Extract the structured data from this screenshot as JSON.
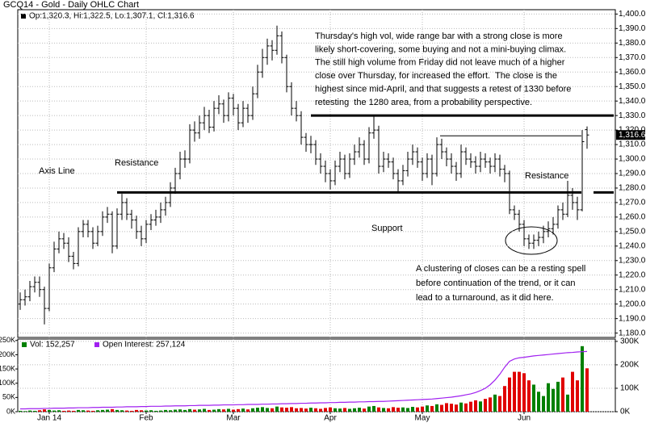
{
  "chart_data": {
    "type": "ohlc",
    "title": "GCQ14 - Gold - Daily OHLC Chart",
    "legend_text": "Op:1,320.3, Hi:1,322.5, Lo:1,307.1, Cl:1,316.6",
    "color": "#000000",
    "grid": true,
    "categories": [
      null,
      null,
      null,
      null,
      null,
      null,
      "Jan 14",
      null,
      null,
      null,
      null,
      null,
      null,
      null,
      null,
      null,
      null,
      null,
      null,
      null,
      null,
      null,
      null,
      null,
      null,
      null,
      "Feb",
      null,
      null,
      null,
      null,
      null,
      null,
      null,
      null,
      null,
      null,
      null,
      null,
      null,
      null,
      null,
      null,
      null,
      "Mar",
      null,
      null,
      null,
      null,
      null,
      null,
      null,
      null,
      null,
      null,
      null,
      null,
      null,
      null,
      null,
      null,
      null,
      null,
      null,
      "Apr",
      null,
      null,
      null,
      null,
      null,
      null,
      null,
      null,
      null,
      null,
      null,
      null,
      null,
      null,
      null,
      null,
      null,
      null,
      "May",
      null,
      null,
      null,
      null,
      null,
      null,
      null,
      null,
      null,
      null,
      null,
      null,
      null,
      null,
      null,
      null,
      null,
      null,
      null,
      null,
      "Jun",
      null,
      null,
      null,
      null,
      null,
      null,
      null,
      null,
      null,
      null,
      null,
      null,
      null
    ],
    "open": [
      1200,
      1203,
      1205,
      1212,
      1215,
      1210,
      1197,
      1225,
      1238,
      1245,
      1242,
      1233,
      1228,
      1250,
      1255,
      1250,
      1242,
      1250,
      1260,
      1262,
      1240,
      1262,
      1270,
      1262,
      1258,
      1250,
      1245,
      1255,
      1258,
      1260,
      1265,
      1270,
      1280,
      1290,
      1300,
      1300,
      1320,
      1318,
      1325,
      1330,
      1322,
      1335,
      1338,
      1330,
      1342,
      1335,
      1325,
      1335,
      1330,
      1345,
      1360,
      1370,
      1378,
      1375,
      1385,
      1370,
      1350,
      1335,
      1330,
      1315,
      1310,
      1310,
      1300,
      1295,
      1290,
      1285,
      1295,
      1300,
      1290,
      1300,
      1305,
      1310,
      1300,
      1318,
      1320,
      1295,
      1300,
      1298,
      1290,
      1285,
      1292,
      1300,
      1305,
      1298,
      1290,
      1300,
      1290,
      1310,
      1305,
      1300,
      1295,
      1290,
      1305,
      1300,
      1298,
      1295,
      1300,
      1298,
      1295,
      1300,
      1293,
      1290,
      1265,
      1262,
      1255,
      1245,
      1242,
      1244,
      1246,
      1250,
      1252,
      1255,
      1265,
      1262,
      1275,
      1270,
      1265,
      1320.3
    ],
    "high": [
      1208,
      1210,
      1216,
      1219,
      1219,
      1212,
      1228,
      1243,
      1250,
      1249,
      1246,
      1236,
      1253,
      1258,
      1258,
      1253,
      1254,
      1264,
      1267,
      1264,
      1266,
      1276,
      1273,
      1265,
      1261,
      1254,
      1258,
      1262,
      1265,
      1270,
      1274,
      1284,
      1294,
      1305,
      1306,
      1324,
      1326,
      1330,
      1336,
      1334,
      1340,
      1344,
      1341,
      1346,
      1345,
      1338,
      1340,
      1338,
      1350,
      1365,
      1376,
      1383,
      1382,
      1392,
      1388,
      1372,
      1353,
      1340,
      1333,
      1318,
      1316,
      1313,
      1304,
      1299,
      1293,
      1299,
      1305,
      1303,
      1304,
      1310,
      1315,
      1313,
      1322,
      1330,
      1323,
      1305,
      1304,
      1301,
      1293,
      1296,
      1305,
      1310,
      1308,
      1301,
      1304,
      1303,
      1315,
      1314,
      1308,
      1304,
      1298,
      1310,
      1308,
      1304,
      1302,
      1305,
      1304,
      1301,
      1304,
      1303,
      1296,
      1292,
      1268,
      1265,
      1258,
      1248,
      1248,
      1250,
      1254,
      1257,
      1260,
      1268,
      1270,
      1285,
      1280,
      1274,
      1320,
      1322.5
    ],
    "low": [
      1196,
      1199,
      1202,
      1208,
      1205,
      1186,
      1195,
      1222,
      1235,
      1238,
      1229,
      1224,
      1226,
      1246,
      1246,
      1238,
      1240,
      1247,
      1256,
      1235,
      1238,
      1258,
      1258,
      1252,
      1245,
      1240,
      1242,
      1251,
      1254,
      1256,
      1261,
      1267,
      1276,
      1286,
      1294,
      1297,
      1312,
      1314,
      1320,
      1318,
      1319,
      1331,
      1325,
      1326,
      1330,
      1320,
      1322,
      1325,
      1327,
      1342,
      1356,
      1365,
      1368,
      1372,
      1366,
      1346,
      1330,
      1326,
      1310,
      1305,
      1304,
      1296,
      1290,
      1284,
      1279,
      1282,
      1291,
      1286,
      1287,
      1296,
      1301,
      1296,
      1297,
      1314,
      1290,
      1291,
      1294,
      1286,
      1277,
      1282,
      1288,
      1296,
      1294,
      1285,
      1287,
      1282,
      1288,
      1300,
      1295,
      1290,
      1285,
      1287,
      1296,
      1294,
      1290,
      1291,
      1294,
      1290,
      1291,
      1288,
      1284,
      1262,
      1258,
      1250,
      1240,
      1238,
      1238,
      1240,
      1242,
      1246,
      1248,
      1252,
      1258,
      1260,
      1265,
      1258,
      1264,
      1307.1
    ],
    "close": [
      1203,
      1205,
      1212,
      1215,
      1210,
      1197,
      1225,
      1238,
      1245,
      1242,
      1233,
      1228,
      1250,
      1255,
      1250,
      1242,
      1250,
      1260,
      1262,
      1240,
      1262,
      1270,
      1262,
      1258,
      1250,
      1245,
      1255,
      1258,
      1260,
      1265,
      1270,
      1280,
      1290,
      1300,
      1300,
      1320,
      1318,
      1325,
      1330,
      1322,
      1335,
      1338,
      1330,
      1342,
      1335,
      1325,
      1335,
      1330,
      1345,
      1360,
      1370,
      1378,
      1375,
      1385,
      1370,
      1350,
      1335,
      1330,
      1315,
      1310,
      1310,
      1300,
      1295,
      1290,
      1285,
      1295,
      1300,
      1290,
      1300,
      1305,
      1310,
      1300,
      1318,
      1320,
      1295,
      1300,
      1298,
      1290,
      1285,
      1292,
      1300,
      1305,
      1298,
      1290,
      1300,
      1290,
      1310,
      1305,
      1300,
      1295,
      1290,
      1305,
      1300,
      1298,
      1295,
      1300,
      1298,
      1295,
      1300,
      1293,
      1290,
      1265,
      1262,
      1255,
      1245,
      1242,
      1244,
      1246,
      1250,
      1252,
      1255,
      1265,
      1262,
      1275,
      1270,
      1265,
      1312,
      1316.6
    ],
    "ylim": [
      1177,
      1403
    ],
    "yticks": [
      {
        "value": 1180,
        "label": "1,180.0"
      },
      {
        "value": 1190,
        "label": "1,190.0"
      },
      {
        "value": 1200,
        "label": "1,200.0"
      },
      {
        "value": 1210,
        "label": "1,210.0"
      },
      {
        "value": 1220,
        "label": "1,220.0"
      },
      {
        "value": 1230,
        "label": "1,230.0"
      },
      {
        "value": 1240,
        "label": "1,240.0"
      },
      {
        "value": 1250,
        "label": "1,250.0"
      },
      {
        "value": 1260,
        "label": "1,260.0"
      },
      {
        "value": 1270,
        "label": "1,270.0"
      },
      {
        "value": 1280,
        "label": "1,280.0"
      },
      {
        "value": 1290,
        "label": "1,290.0"
      },
      {
        "value": 1300,
        "label": "1,300.0"
      },
      {
        "value": 1310,
        "label": "1,310.0"
      },
      {
        "value": 1320,
        "label": "1,320.0"
      },
      {
        "value": 1330,
        "label": "1,330.0"
      },
      {
        "value": 1340,
        "label": "1,340.0"
      },
      {
        "value": 1350,
        "label": "1,350.0"
      },
      {
        "value": 1360,
        "label": "1,360.0"
      },
      {
        "value": 1370,
        "label": "1,370.0"
      },
      {
        "value": 1380,
        "label": "1,380.0"
      },
      {
        "value": 1390,
        "label": "1,390.0"
      },
      {
        "value": 1400,
        "label": "1,400.0"
      }
    ],
    "last_price": {
      "value": 1316.6,
      "label": "1,316.6"
    },
    "levels": [
      1330,
      1277,
      1316
    ],
    "annotations": [
      {
        "lines": [
          "Thursday's high vol, wide range bar with a strong close is more",
          "likely short-covering, some buying and not a mini-buying climax.",
          "The still high volume from Friday did not leave much of a higher",
          "close over Thursday, for increased the effort.  The close is the",
          "highest since mid-April, and that suggests a retest of 1330 before",
          "retesting  the 1280 area, from a probability perspective."
        ]
      },
      {
        "lines": [
          "Axis Line"
        ]
      },
      {
        "lines": [
          "Resistance"
        ]
      },
      {
        "lines": [
          "Support"
        ]
      },
      {
        "lines": [
          "Resistance"
        ]
      },
      {
        "lines": [
          "A clustering of closes can be a resting spell",
          "before continuation of the trend, or it can",
          "lead to a turnaround, as it did here."
        ]
      }
    ],
    "volume": {
      "name": "Vol: 152,257",
      "up_color": "#008000",
      "down_color": "#e00000",
      "values": [
        3000,
        2000,
        4000,
        3000,
        5000,
        8000,
        6000,
        4000,
        5000,
        3000,
        4000,
        3000,
        6000,
        5000,
        4000,
        3000,
        5000,
        6000,
        7000,
        9000,
        6000,
        5000,
        4000,
        3000,
        6000,
        5000,
        4000,
        5000,
        3000,
        4000,
        6000,
        5000,
        7000,
        8000,
        6000,
        9000,
        7000,
        8000,
        10000,
        6000,
        7000,
        9000,
        8000,
        10000,
        7000,
        9000,
        11000,
        8000,
        12000,
        14000,
        16000,
        13000,
        12000,
        18000,
        15000,
        14000,
        16000,
        12000,
        13000,
        11000,
        14000,
        12000,
        10000,
        13000,
        15000,
        12000,
        11000,
        13000,
        10000,
        12000,
        14000,
        11000,
        18000,
        20000,
        15000,
        13000,
        12000,
        16000,
        14000,
        15000,
        13000,
        17000,
        15000,
        18000,
        22000,
        20000,
        26000,
        24000,
        30000,
        28000,
        25000,
        32000,
        29000,
        35000,
        40000,
        36000,
        45000,
        50000,
        60000,
        55000,
        90000,
        120000,
        140000,
        140000,
        135000,
        110000,
        95000,
        70000,
        55000,
        100000,
        80000,
        105000,
        120000,
        60000,
        140000,
        110000,
        230000,
        152257
      ],
      "ylim": [
        0,
        255000
      ],
      "yticks": [
        {
          "value": 0,
          "label": "0K"
        },
        {
          "value": 50000,
          "label": "50K"
        },
        {
          "value": 100000,
          "label": "100K"
        },
        {
          "value": 150000,
          "label": "150K"
        },
        {
          "value": 200000,
          "label": "200K"
        },
        {
          "value": 250000,
          "label": "250K"
        }
      ]
    },
    "open_interest": {
      "name": "Open Interest: 257,124",
      "color": "#a020f0",
      "values": [
        12000,
        12000,
        13000,
        13000,
        13000,
        14000,
        14000,
        15000,
        15000,
        15000,
        16000,
        16000,
        17000,
        17000,
        17000,
        18000,
        18000,
        19000,
        19000,
        19000,
        20000,
        20000,
        21000,
        21000,
        21000,
        22000,
        22000,
        23000,
        23000,
        23000,
        24000,
        24000,
        25000,
        25000,
        25000,
        26000,
        26000,
        27000,
        27000,
        27000,
        28000,
        28000,
        29000,
        29000,
        29000,
        30000,
        30000,
        31000,
        31000,
        31000,
        32000,
        32000,
        33000,
        33000,
        34000,
        34000,
        35000,
        35000,
        36000,
        36000,
        37000,
        37000,
        38000,
        38000,
        39000,
        39000,
        40000,
        40000,
        41000,
        41000,
        42000,
        42000,
        43000,
        43000,
        44000,
        44000,
        45000,
        46000,
        47000,
        48000,
        49000,
        50000,
        51000,
        52000,
        53000,
        54000,
        56000,
        58000,
        60000,
        62000,
        65000,
        68000,
        72000,
        76000,
        82000,
        90000,
        100000,
        115000,
        135000,
        160000,
        190000,
        215000,
        225000,
        230000,
        232000,
        235000,
        238000,
        240000,
        242000,
        244000,
        246000,
        248000,
        250000,
        252000,
        253000,
        255000,
        256000,
        257124
      ],
      "ylim": [
        0,
        310000
      ],
      "yticks": [
        {
          "value": 0,
          "label": "0K"
        },
        {
          "value": 100000,
          "label": "100K"
        },
        {
          "value": 200000,
          "label": "200K"
        },
        {
          "value": 300000,
          "label": "300K"
        }
      ]
    }
  }
}
